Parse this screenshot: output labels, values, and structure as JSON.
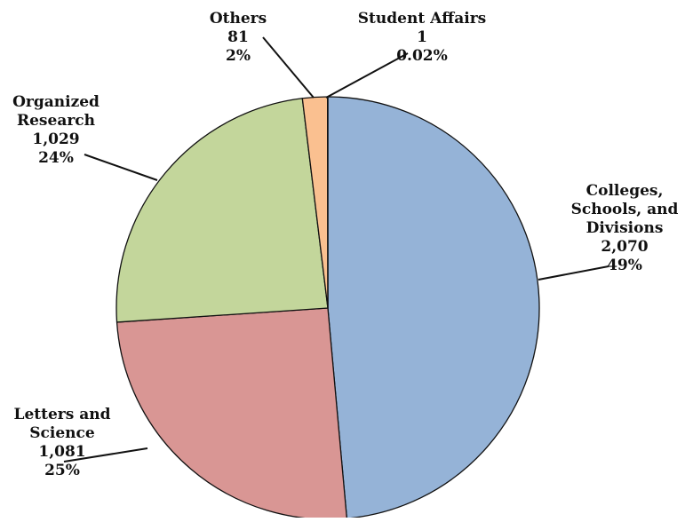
{
  "chart_data": {
    "type": "pie",
    "title": "",
    "slices": [
      {
        "label_lines": [
          "Colleges,",
          "Schools, and",
          "Divisions"
        ],
        "value": 2070,
        "value_label": "2,070",
        "percent_label": "49%",
        "color": "#95B3D7"
      },
      {
        "label_lines": [
          "Letters and",
          "Science"
        ],
        "value": 1081,
        "value_label": "1,081",
        "percent_label": "25%",
        "color": "#D99694"
      },
      {
        "label_lines": [
          "Organized",
          "Research"
        ],
        "value": 1029,
        "value_label": "1,029",
        "percent_label": "24%",
        "color": "#C3D69B"
      },
      {
        "label_lines": [
          "Others"
        ],
        "value": 81,
        "value_label": "81",
        "percent_label": "2%",
        "color": "#FAC090"
      },
      {
        "label_lines": [
          "Student Affairs"
        ],
        "value": 1,
        "value_label": "1",
        "percent_label": "0.02%",
        "color": "#E46C0A"
      }
    ],
    "legend": "none",
    "label_placement": "outside-with-leader-lines"
  }
}
